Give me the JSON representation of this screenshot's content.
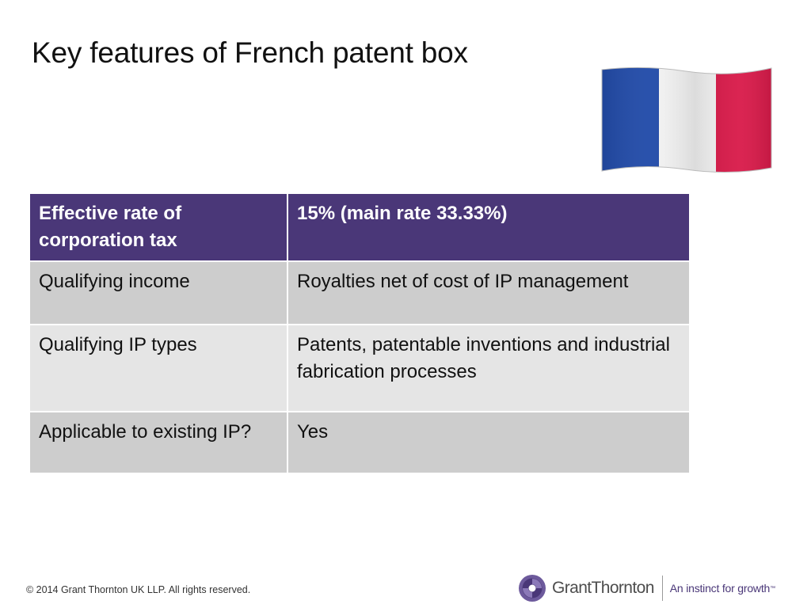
{
  "slide": {
    "title": "Key features of French patent box"
  },
  "table": {
    "header": {
      "label": "Effective rate of corporation tax",
      "value": "15% (main rate 33.33%)"
    },
    "rows": [
      {
        "label": "Qualifying income",
        "value": "Royalties net of cost of IP management"
      },
      {
        "label": "Qualifying IP types",
        "value": "Patents, patentable inventions and industrial fabrication processes"
      },
      {
        "label": "Applicable to existing IP?",
        "value": "Yes"
      }
    ]
  },
  "footer": {
    "copyright": "© 2014 Grant Thornton UK LLP. All rights reserved."
  },
  "brand": {
    "name": "GrantThornton",
    "tagline": "An instinct for growth",
    "trademark": "™"
  },
  "colors": {
    "header_purple": "#4a3778",
    "row_dark": "#cdcdcd",
    "row_light": "#e5e5e5",
    "flag_blue": "#1f49a8",
    "flag_white": "#f4f4f4",
    "flag_red": "#d81747"
  },
  "icons": {
    "flag": "france-flag-icon",
    "logo": "grant-thornton-logo-icon"
  }
}
